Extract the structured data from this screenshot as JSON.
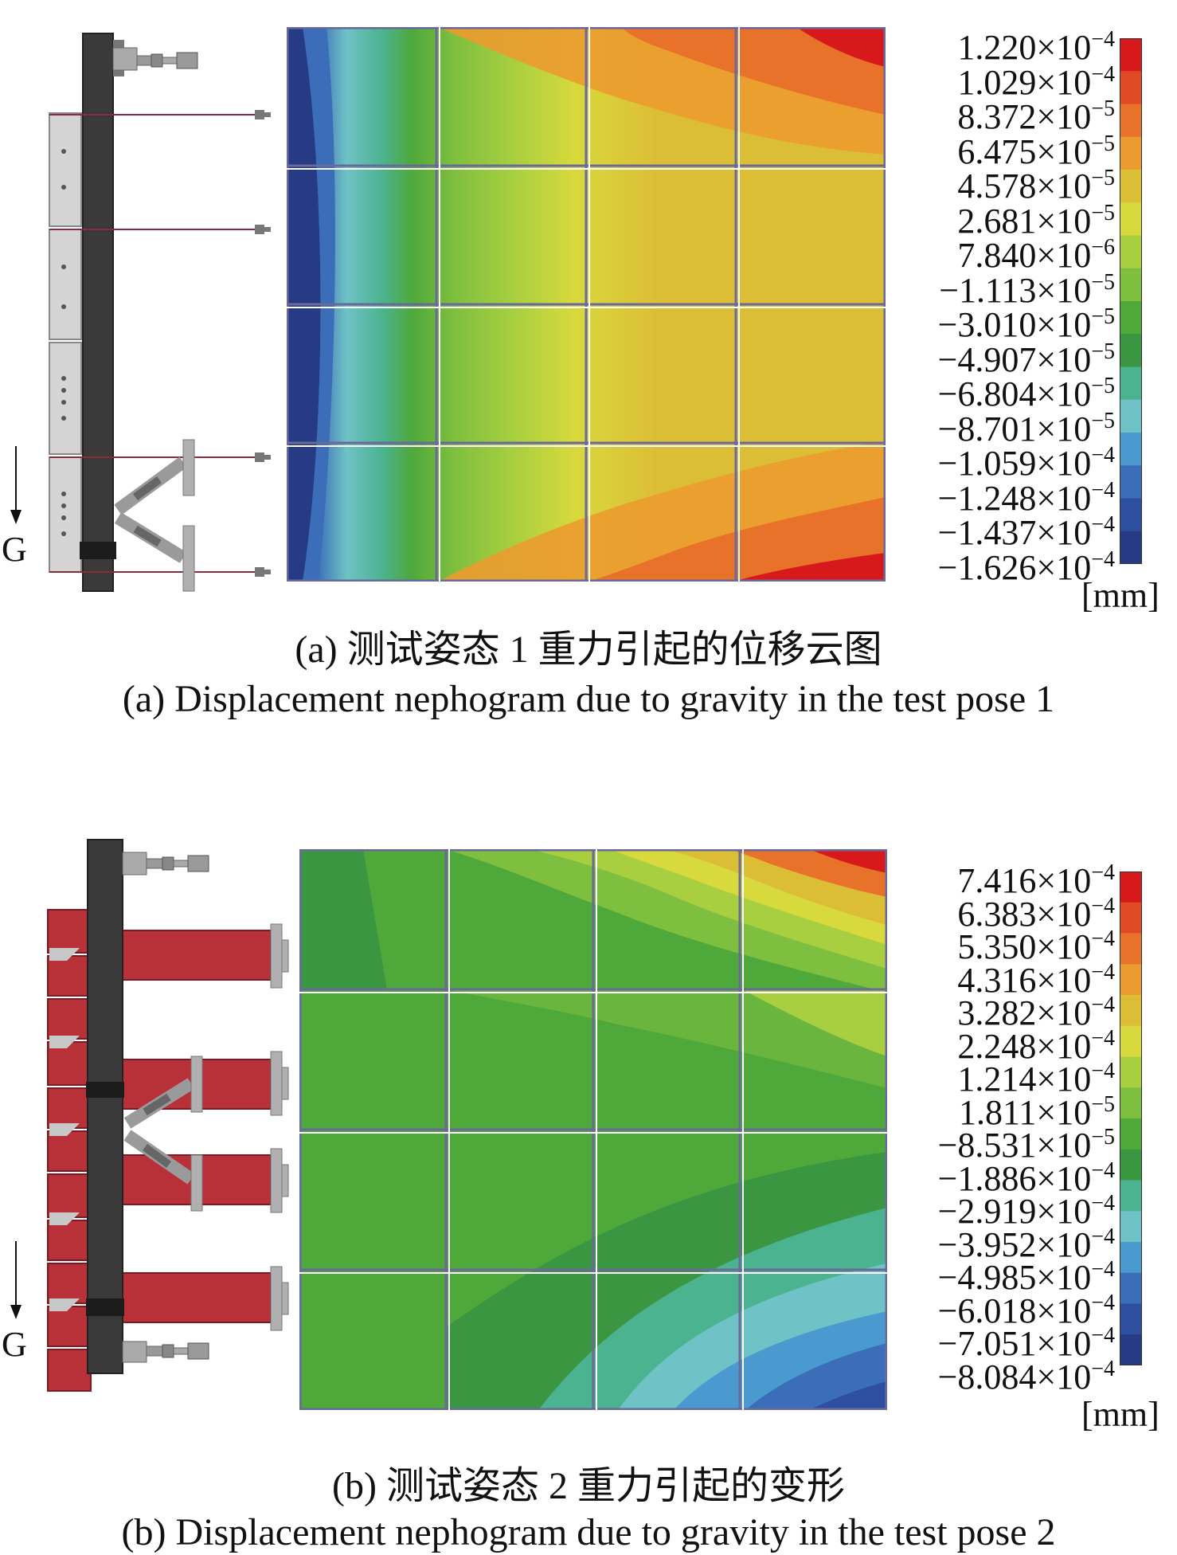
{
  "panel_a": {
    "gravity_label": "G",
    "legend": {
      "unit": "[mm]",
      "labels": [
        {
          "mantissa": "1.220×10",
          "exp": "−4"
        },
        {
          "mantissa": "1.029×10",
          "exp": "−4"
        },
        {
          "mantissa": "8.372×10",
          "exp": "−5"
        },
        {
          "mantissa": "6.475×10",
          "exp": "−5"
        },
        {
          "mantissa": "4.578×10",
          "exp": "−5"
        },
        {
          "mantissa": "2.681×10",
          "exp": "−5"
        },
        {
          "mantissa": "7.840×10",
          "exp": "−6"
        },
        {
          "mantissa": "−1.113×10",
          "exp": "−5"
        },
        {
          "mantissa": "−3.010×10",
          "exp": "−5"
        },
        {
          "mantissa": "−4.907×10",
          "exp": "−5"
        },
        {
          "mantissa": "−6.804×10",
          "exp": "−5"
        },
        {
          "mantissa": "−8.701×10",
          "exp": "−5"
        },
        {
          "mantissa": "−1.059×10",
          "exp": "−4"
        },
        {
          "mantissa": "−1.248×10",
          "exp": "−4"
        },
        {
          "mantissa": "−1.437×10",
          "exp": "−4"
        },
        {
          "mantissa": "−1.626×10",
          "exp": "−4"
        }
      ]
    },
    "caption_cn": "(a) 测试姿态 1 重力引起的位移云图",
    "caption_en": "(a) Displacement nephogram due to gravity in the test pose 1"
  },
  "panel_b": {
    "gravity_label": "G",
    "legend": {
      "unit": "[mm]",
      "labels": [
        {
          "mantissa": "7.416×10",
          "exp": "−4"
        },
        {
          "mantissa": "6.383×10",
          "exp": "−4"
        },
        {
          "mantissa": "5.350×10",
          "exp": "−4"
        },
        {
          "mantissa": "4.316×10",
          "exp": "−4"
        },
        {
          "mantissa": "3.282×10",
          "exp": "−4"
        },
        {
          "mantissa": "2.248×10",
          "exp": "−4"
        },
        {
          "mantissa": "1.214×10",
          "exp": "−4"
        },
        {
          "mantissa": "1.811×10",
          "exp": "−5"
        },
        {
          "mantissa": "−8.531×10",
          "exp": "−5"
        },
        {
          "mantissa": "−1.886×10",
          "exp": "−4"
        },
        {
          "mantissa": "−2.919×10",
          "exp": "−4"
        },
        {
          "mantissa": "−3.952×10",
          "exp": "−4"
        },
        {
          "mantissa": "−4.985×10",
          "exp": "−4"
        },
        {
          "mantissa": "−6.018×10",
          "exp": "−4"
        },
        {
          "mantissa": "−7.051×10",
          "exp": "−4"
        },
        {
          "mantissa": "−8.084×10",
          "exp": "−4"
        }
      ]
    },
    "caption_cn": "(b) 测试姿态 2 重力引起的变形",
    "caption_en": "(b) Displacement nephogram due to gravity in the test pose 2"
  },
  "colormap": [
    "#d7191c",
    "#e04a25",
    "#e8722a",
    "#eb9b2f",
    "#dcbd36",
    "#d8d93c",
    "#a8cf3f",
    "#7fbf3f",
    "#4fa83a",
    "#3a9641",
    "#4bb38f",
    "#6fc2c6",
    "#4a9ad0",
    "#3b6db8",
    "#2e4fa0",
    "#273b85"
  ]
}
